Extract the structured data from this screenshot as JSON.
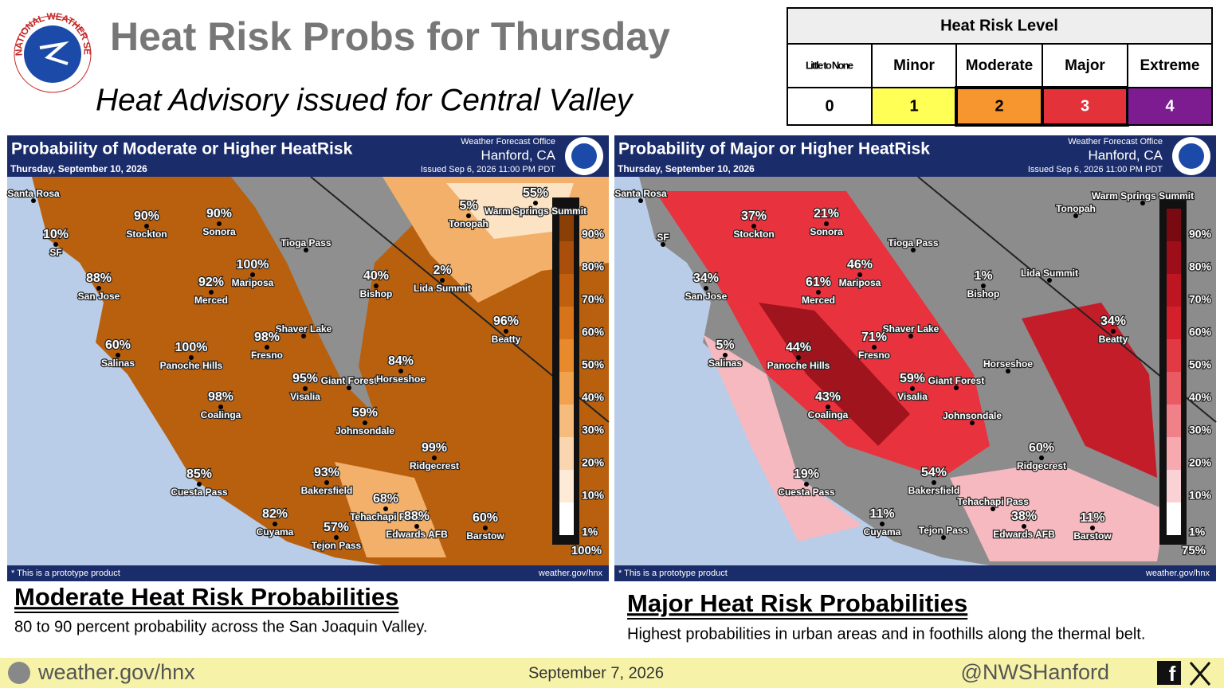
{
  "header": {
    "logo_text": "NATIONAL WEATHER SERVICE",
    "title": "Heat Risk Probs for Thursday",
    "subtitle": "Heat Advisory issued for Central Valley"
  },
  "risk_table": {
    "title": "Heat Risk Level",
    "levels": [
      {
        "name": "Little to None",
        "value": "0"
      },
      {
        "name": "Minor",
        "value": "1"
      },
      {
        "name": "Moderate",
        "value": "2"
      },
      {
        "name": "Major",
        "value": "3"
      },
      {
        "name": "Extreme",
        "value": "4"
      }
    ]
  },
  "maps": [
    {
      "title": "Probability of Moderate or Higher HeatRisk",
      "date": "Thursday, September 10, 2026",
      "office": "Weather Forecast Office",
      "office_location": "Hanford, CA",
      "issued": "Issued Sep 6, 2026 11:00 PM PDT",
      "note": "* This is a prototype product",
      "url": "weather.gov/hnx",
      "legend": [
        "90%",
        "80%",
        "70%",
        "60%",
        "50%",
        "40%",
        "30%",
        "20%",
        "10%",
        "1%"
      ],
      "corner_pct": "100%",
      "locations": [
        {
          "name": "Santa Rosa"
        },
        {
          "name": "Stockton",
          "pct": "90%"
        },
        {
          "name": "Sonora",
          "pct": "90%"
        },
        {
          "name": "SF",
          "pct": "10%"
        },
        {
          "name": "Tioga Pass"
        },
        {
          "name": "Tonopah",
          "pct": "5%"
        },
        {
          "name": "Warm Springs Summit",
          "pct": "55%"
        },
        {
          "name": "Mariposa",
          "pct": "100%"
        },
        {
          "name": "San Jose",
          "pct": "88%"
        },
        {
          "name": "Merced",
          "pct": "92%"
        },
        {
          "name": "Lida Summit",
          "pct": "2%"
        },
        {
          "name": "Bishop",
          "pct": "40%"
        },
        {
          "name": "Shaver Lake"
        },
        {
          "name": "Beatty",
          "pct": "96%"
        },
        {
          "name": "Fresno",
          "pct": "98%"
        },
        {
          "name": "Salinas",
          "pct": "60%"
        },
        {
          "name": "Panoche Hills",
          "pct": "100%"
        },
        {
          "name": "Giant Forest"
        },
        {
          "name": "Horseshoe",
          "pct": "84%"
        },
        {
          "name": "Visalia",
          "pct": "95%"
        },
        {
          "name": "Coalinga",
          "pct": "98%"
        },
        {
          "name": "Johnsondale",
          "pct": "59%"
        },
        {
          "name": "Ridgecrest",
          "pct": "99%"
        },
        {
          "name": "Cuesta Pass",
          "pct": "85%"
        },
        {
          "name": "Bakersfield",
          "pct": "93%"
        },
        {
          "name": "Tehachapi Pass",
          "pct": "68%"
        },
        {
          "name": "Edwards AFB",
          "pct": "88%"
        },
        {
          "name": "Barstow",
          "pct": "60%"
        },
        {
          "name": "Cuyama",
          "pct": "82%"
        },
        {
          "name": "Tejon Pass",
          "pct": "57%"
        }
      ]
    },
    {
      "title": "Probability of Major or Higher HeatRisk",
      "date": "Thursday, September 10, 2026",
      "office": "Weather Forecast Office",
      "office_location": "Hanford, CA",
      "issued": "Issued Sep 6, 2026 11:00 PM PDT",
      "note": "* This is a prototype product",
      "url": "weather.gov/hnx",
      "legend": [
        "90%",
        "80%",
        "70%",
        "60%",
        "50%",
        "40%",
        "30%",
        "20%",
        "10%",
        "1%"
      ],
      "corner_pct": "75%",
      "locations": [
        {
          "name": "Santa Rosa"
        },
        {
          "name": "Stockton",
          "pct": "37%"
        },
        {
          "name": "Sonora",
          "pct": "21%"
        },
        {
          "name": "SF"
        },
        {
          "name": "Tioga Pass"
        },
        {
          "name": "Tonopah"
        },
        {
          "name": "Warm Springs Summit"
        },
        {
          "name": "Mariposa",
          "pct": "46%"
        },
        {
          "name": "San Jose",
          "pct": "34%"
        },
        {
          "name": "Merced",
          "pct": "61%"
        },
        {
          "name": "Lida Summit"
        },
        {
          "name": "Bishop",
          "pct": "1%"
        },
        {
          "name": "Shaver Lake"
        },
        {
          "name": "Beatty",
          "pct": "34%"
        },
        {
          "name": "Fresno",
          "pct": "71%"
        },
        {
          "name": "Salinas",
          "pct": "5%"
        },
        {
          "name": "Panoche Hills",
          "pct": "44%"
        },
        {
          "name": "Giant Forest"
        },
        {
          "name": "Horseshoe"
        },
        {
          "name": "Visalia",
          "pct": "59%"
        },
        {
          "name": "Coalinga",
          "pct": "43%"
        },
        {
          "name": "Johnsondale"
        },
        {
          "name": "Ridgecrest",
          "pct": "60%"
        },
        {
          "name": "Cuesta Pass",
          "pct": "19%"
        },
        {
          "name": "Bakersfield",
          "pct": "54%"
        },
        {
          "name": "Tehachapi Pass"
        },
        {
          "name": "Edwards AFB",
          "pct": "38%"
        },
        {
          "name": "Barstow",
          "pct": "11%"
        },
        {
          "name": "Cuyama",
          "pct": "11%"
        },
        {
          "name": "Tejon Pass"
        }
      ]
    }
  ],
  "captions": [
    {
      "heading": "Moderate Heat Risk Probabilities",
      "text": "80 to 90 percent probability across the San Joaquin Valley."
    },
    {
      "heading": "Major Heat Risk Probabilities",
      "text": "Highest probabilities in urban areas and in foothills along the thermal belt."
    }
  ],
  "footer": {
    "url": "weather.gov/hnx",
    "date": "September 7, 2026",
    "handle": "@NWSHanford"
  }
}
